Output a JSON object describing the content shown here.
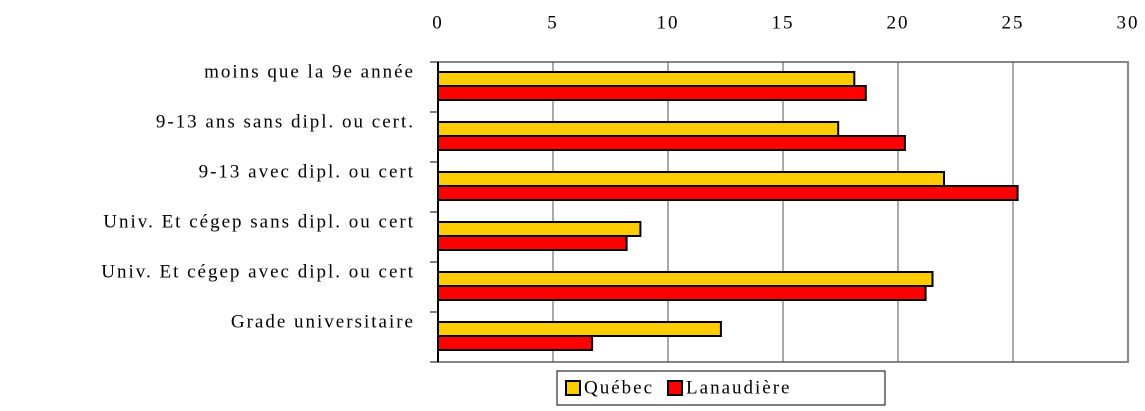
{
  "chart_data": {
    "type": "bar",
    "orientation": "horizontal",
    "categories": [
      "moins que la 9e année",
      "9-13 ans sans dipl. ou cert.",
      "9-13 avec dipl. ou cert",
      "Univ. Et cégep sans dipl. ou cert",
      "Univ. Et cégep avec dipl. ou cert",
      "Grade universitaire"
    ],
    "series": [
      {
        "name": "Québec",
        "color": "#ffcc00",
        "values": [
          18.1,
          17.4,
          22.0,
          8.8,
          21.5,
          12.3
        ]
      },
      {
        "name": "Lanaudière",
        "color": "#ff0000",
        "values": [
          18.6,
          20.3,
          25.2,
          8.2,
          21.2,
          6.7
        ]
      }
    ],
    "xlim": [
      0,
      30
    ],
    "xticks": [
      0,
      5,
      10,
      15,
      20,
      25,
      30
    ],
    "grid": true,
    "legend": "bottom"
  }
}
